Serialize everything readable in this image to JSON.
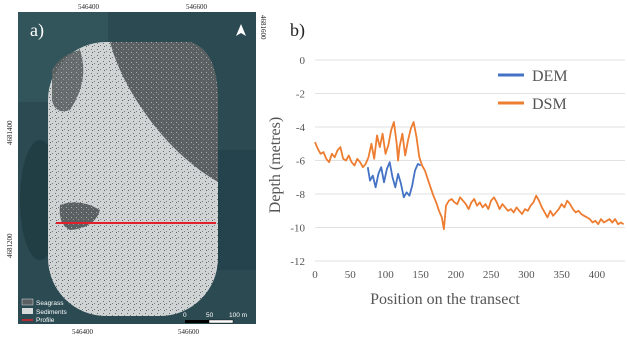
{
  "map": {
    "label": "a)",
    "top_ticks": [
      "546400",
      "546600"
    ],
    "bottom_ticks": [
      "546400",
      "546600"
    ],
    "left_ticks": [
      "4681200",
      "4681400"
    ],
    "right_tick": "4681600",
    "legend": [
      {
        "label": "Seagrass",
        "color": "#5a5f61"
      },
      {
        "label": "Sediments",
        "color": "#d6dadb"
      },
      {
        "label": "Profile",
        "color": "#e0202a"
      }
    ],
    "scale_labels": [
      "0",
      "50",
      "100 m"
    ],
    "north_icon": "north-arrow-icon"
  },
  "chart_data": {
    "type": "line",
    "panel_label": "b)",
    "xlabel": "Position on the transect",
    "ylabel": "Depth (metres)",
    "xlim": [
      0,
      440
    ],
    "ylim": [
      -12,
      0
    ],
    "x_ticks": [
      "0",
      "50",
      "100",
      "150",
      "200",
      "250",
      "300",
      "350",
      "400"
    ],
    "y_ticks": [
      "0",
      "-2",
      "-4",
      "-6",
      "-8",
      "-10",
      "-12"
    ],
    "legend_position": "top-right",
    "series": [
      {
        "name": "DEM",
        "color": "#4472c4",
        "points": [
          [
            75,
            -6.4
          ],
          [
            78,
            -7.2
          ],
          [
            82,
            -6.9
          ],
          [
            86,
            -7.6
          ],
          [
            90,
            -6.8
          ],
          [
            94,
            -6.4
          ],
          [
            98,
            -7.3
          ],
          [
            102,
            -6.5
          ],
          [
            106,
            -6.1
          ],
          [
            110,
            -7.0
          ],
          [
            114,
            -7.6
          ],
          [
            118,
            -6.8
          ],
          [
            122,
            -7.4
          ],
          [
            126,
            -8.2
          ],
          [
            130,
            -7.9
          ],
          [
            134,
            -8.1
          ],
          [
            138,
            -7.5
          ],
          [
            142,
            -6.6
          ],
          [
            146,
            -6.2
          ],
          [
            150,
            -6.3
          ]
        ]
      },
      {
        "name": "DSM",
        "color": "#ed7d31",
        "points": [
          [
            0,
            -4.9
          ],
          [
            4,
            -5.3
          ],
          [
            8,
            -5.6
          ],
          [
            12,
            -5.5
          ],
          [
            16,
            -5.9
          ],
          [
            20,
            -6.1
          ],
          [
            24,
            -5.6
          ],
          [
            28,
            -5.8
          ],
          [
            32,
            -5.4
          ],
          [
            36,
            -5.2
          ],
          [
            40,
            -5.9
          ],
          [
            44,
            -6.0
          ],
          [
            48,
            -5.7
          ],
          [
            52,
            -6.1
          ],
          [
            56,
            -6.3
          ],
          [
            60,
            -5.9
          ],
          [
            64,
            -6.1
          ],
          [
            68,
            -6.4
          ],
          [
            72,
            -6.2
          ],
          [
            76,
            -5.8
          ],
          [
            80,
            -5.0
          ],
          [
            84,
            -5.9
          ],
          [
            88,
            -4.5
          ],
          [
            92,
            -5.2
          ],
          [
            96,
            -4.4
          ],
          [
            100,
            -5.6
          ],
          [
            104,
            -5.1
          ],
          [
            108,
            -4.2
          ],
          [
            112,
            -3.7
          ],
          [
            116,
            -5.0
          ],
          [
            118,
            -6.0
          ],
          [
            120,
            -5.2
          ],
          [
            124,
            -4.4
          ],
          [
            128,
            -5.7
          ],
          [
            132,
            -4.8
          ],
          [
            136,
            -4.1
          ],
          [
            140,
            -3.7
          ],
          [
            144,
            -4.6
          ],
          [
            148,
            -5.8
          ],
          [
            152,
            -6.3
          ],
          [
            156,
            -6.6
          ],
          [
            160,
            -7.1
          ],
          [
            164,
            -7.6
          ],
          [
            168,
            -8.1
          ],
          [
            172,
            -8.5
          ],
          [
            176,
            -9.0
          ],
          [
            180,
            -9.4
          ],
          [
            183,
            -10.1
          ],
          [
            186,
            -8.7
          ],
          [
            190,
            -8.4
          ],
          [
            194,
            -8.3
          ],
          [
            198,
            -8.5
          ],
          [
            202,
            -8.6
          ],
          [
            206,
            -8.2
          ],
          [
            210,
            -8.4
          ],
          [
            214,
            -8.6
          ],
          [
            218,
            -8.9
          ],
          [
            222,
            -8.5
          ],
          [
            226,
            -8.3
          ],
          [
            230,
            -8.7
          ],
          [
            234,
            -8.5
          ],
          [
            238,
            -8.8
          ],
          [
            242,
            -8.6
          ],
          [
            246,
            -8.9
          ],
          [
            250,
            -8.4
          ],
          [
            254,
            -8.2
          ],
          [
            258,
            -8.5
          ],
          [
            262,
            -8.9
          ],
          [
            266,
            -8.6
          ],
          [
            270,
            -8.8
          ],
          [
            274,
            -9.0
          ],
          [
            278,
            -8.9
          ],
          [
            282,
            -9.1
          ],
          [
            286,
            -8.8
          ],
          [
            290,
            -9.0
          ],
          [
            294,
            -9.2
          ],
          [
            298,
            -8.9
          ],
          [
            302,
            -9.0
          ],
          [
            306,
            -8.7
          ],
          [
            310,
            -8.5
          ],
          [
            314,
            -8.1
          ],
          [
            318,
            -8.4
          ],
          [
            322,
            -8.8
          ],
          [
            326,
            -9.1
          ],
          [
            330,
            -9.4
          ],
          [
            334,
            -9.0
          ],
          [
            338,
            -9.3
          ],
          [
            342,
            -9.1
          ],
          [
            346,
            -8.9
          ],
          [
            350,
            -8.6
          ],
          [
            354,
            -8.8
          ],
          [
            358,
            -8.4
          ],
          [
            362,
            -8.6
          ],
          [
            366,
            -8.9
          ],
          [
            370,
            -9.1
          ],
          [
            374,
            -9.0
          ],
          [
            378,
            -9.2
          ],
          [
            382,
            -9.3
          ],
          [
            386,
            -9.4
          ],
          [
            390,
            -9.5
          ],
          [
            394,
            -9.7
          ],
          [
            398,
            -9.6
          ],
          [
            402,
            -9.8
          ],
          [
            406,
            -9.5
          ],
          [
            410,
            -9.7
          ],
          [
            414,
            -9.6
          ],
          [
            418,
            -9.5
          ],
          [
            422,
            -9.7
          ],
          [
            426,
            -9.5
          ],
          [
            430,
            -9.8
          ],
          [
            434,
            -9.7
          ],
          [
            438,
            -9.8
          ]
        ]
      }
    ]
  }
}
